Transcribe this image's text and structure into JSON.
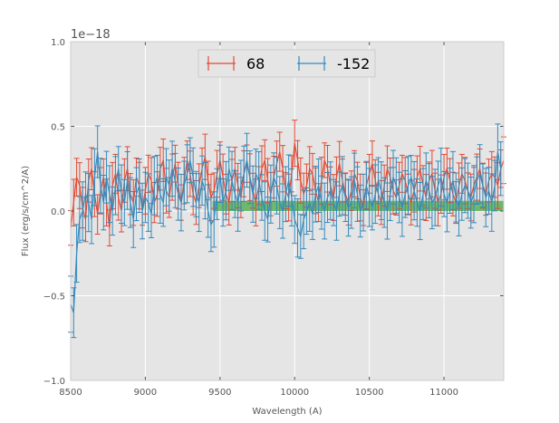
{
  "chart_data": {
    "type": "line",
    "title": "",
    "xlabel": "Wavelength (A)",
    "ylabel": "Flux (erg/s/cm^2/A)",
    "xlim": [
      8500,
      11400
    ],
    "ylim": [
      -1.0,
      1.0
    ],
    "y_offset_label": "1e−18",
    "xticks": [
      8500,
      9000,
      9500,
      10000,
      10500,
      11000
    ],
    "xtick_labels": [
      "8500",
      "9000",
      "9500",
      "10000",
      "10500",
      "11000"
    ],
    "yticks": [
      -1.0,
      -0.5,
      0.0,
      0.5,
      1.0
    ],
    "ytick_labels": [
      "−1.0",
      "−0.5",
      "0.0",
      "0.5",
      "1.0"
    ],
    "grid": true,
    "legend_position": "top-center",
    "band": {
      "x_start": 9450,
      "x_end": 11400,
      "y_low": 0.0,
      "y_high": 0.06,
      "color": "#2ca02c"
    },
    "series": [
      {
        "name": "68",
        "color": "#e24a33",
        "x_start": 8500,
        "x_step": 20,
        "error": 0.12,
        "values": [
          -0.1,
          0.05,
          0.2,
          0.15,
          0.02,
          -0.05,
          0.18,
          0.25,
          0.1,
          -0.02,
          0.12,
          0.2,
          0.05,
          -0.1,
          0.15,
          0.22,
          0.08,
          0.0,
          0.18,
          0.25,
          0.1,
          0.05,
          0.2,
          0.15,
          0.02,
          0.12,
          0.22,
          0.18,
          0.05,
          0.1,
          0.25,
          0.3,
          0.12,
          0.08,
          0.2,
          0.28,
          0.15,
          0.05,
          0.18,
          0.3,
          0.22,
          0.1,
          0.05,
          0.15,
          0.25,
          0.32,
          0.18,
          0.08,
          0.12,
          0.22,
          0.3,
          0.2,
          0.1,
          0.05,
          0.18,
          0.25,
          0.15,
          0.08,
          0.22,
          0.28,
          0.2,
          0.12,
          0.05,
          0.15,
          0.25,
          0.3,
          0.18,
          0.1,
          0.2,
          0.28,
          0.35,
          0.25,
          0.12,
          0.08,
          0.22,
          0.4,
          0.3,
          0.18,
          0.1,
          0.15,
          0.25,
          0.22,
          0.12,
          0.05,
          0.18,
          0.3,
          0.25,
          0.15,
          0.08,
          0.2,
          0.28,
          0.18,
          0.1,
          0.05,
          0.12,
          0.22,
          0.18,
          0.08,
          0.02,
          0.15,
          0.22,
          0.28,
          0.18,
          0.1,
          0.05,
          0.15,
          0.25,
          0.2,
          0.12,
          0.08,
          0.15,
          0.22,
          0.18,
          0.1,
          0.05,
          0.12,
          0.2,
          0.25,
          0.15,
          0.08,
          0.18,
          0.22,
          0.12,
          0.05,
          0.1,
          0.2,
          0.25,
          0.18,
          0.1,
          0.05,
          0.15,
          0.22,
          0.18,
          0.12,
          0.08,
          0.15,
          0.2,
          0.25,
          0.15,
          0.1,
          0.18,
          0.22,
          0.2,
          0.15,
          0.25,
          0.3
        ]
      },
      {
        "name": "-152",
        "color": "#348abd",
        "x_start": 8500,
        "x_step": 20,
        "error": 0.15,
        "values": [
          -0.55,
          -0.6,
          -0.25,
          -0.05,
          0.0,
          0.1,
          0.05,
          -0.05,
          0.2,
          0.35,
          0.15,
          0.05,
          0.2,
          0.1,
          0.0,
          0.15,
          0.25,
          0.1,
          0.05,
          0.18,
          0.05,
          -0.05,
          0.1,
          0.15,
          0.0,
          0.08,
          0.05,
          -0.02,
          0.15,
          0.2,
          0.1,
          0.05,
          0.2,
          0.15,
          0.25,
          0.18,
          0.1,
          0.05,
          0.15,
          0.22,
          0.3,
          0.2,
          0.1,
          0.05,
          0.18,
          0.12,
          0.0,
          -0.08,
          -0.05,
          0.1,
          0.22,
          0.05,
          0.12,
          0.25,
          0.18,
          0.1,
          0.05,
          0.15,
          0.22,
          0.3,
          0.2,
          0.1,
          0.22,
          0.18,
          0.08,
          0.0,
          -0.05,
          0.1,
          0.2,
          0.15,
          0.05,
          0.0,
          0.1,
          0.18,
          0.08,
          -0.05,
          -0.1,
          -0.15,
          -0.05,
          0.0,
          0.05,
          -0.02,
          0.1,
          0.15,
          0.05,
          0.0,
          0.08,
          0.12,
          0.05,
          0.0,
          0.1,
          0.15,
          0.08,
          0.02,
          0.05,
          0.18,
          0.1,
          0.0,
          0.05,
          0.15,
          0.08,
          0.02,
          0.1,
          0.18,
          0.12,
          0.05,
          0.0,
          0.1,
          0.2,
          0.15,
          0.08,
          0.02,
          0.1,
          0.15,
          0.2,
          0.12,
          0.05,
          0.0,
          0.1,
          0.18,
          0.12,
          0.05,
          0.08,
          0.15,
          0.2,
          0.1,
          0.05,
          0.12,
          0.18,
          0.08,
          0.02,
          0.1,
          0.15,
          0.12,
          0.05,
          0.1,
          0.18,
          0.22,
          0.15,
          0.08,
          0.12,
          0.05,
          0.15,
          0.35,
          0.25
        ]
      }
    ]
  }
}
